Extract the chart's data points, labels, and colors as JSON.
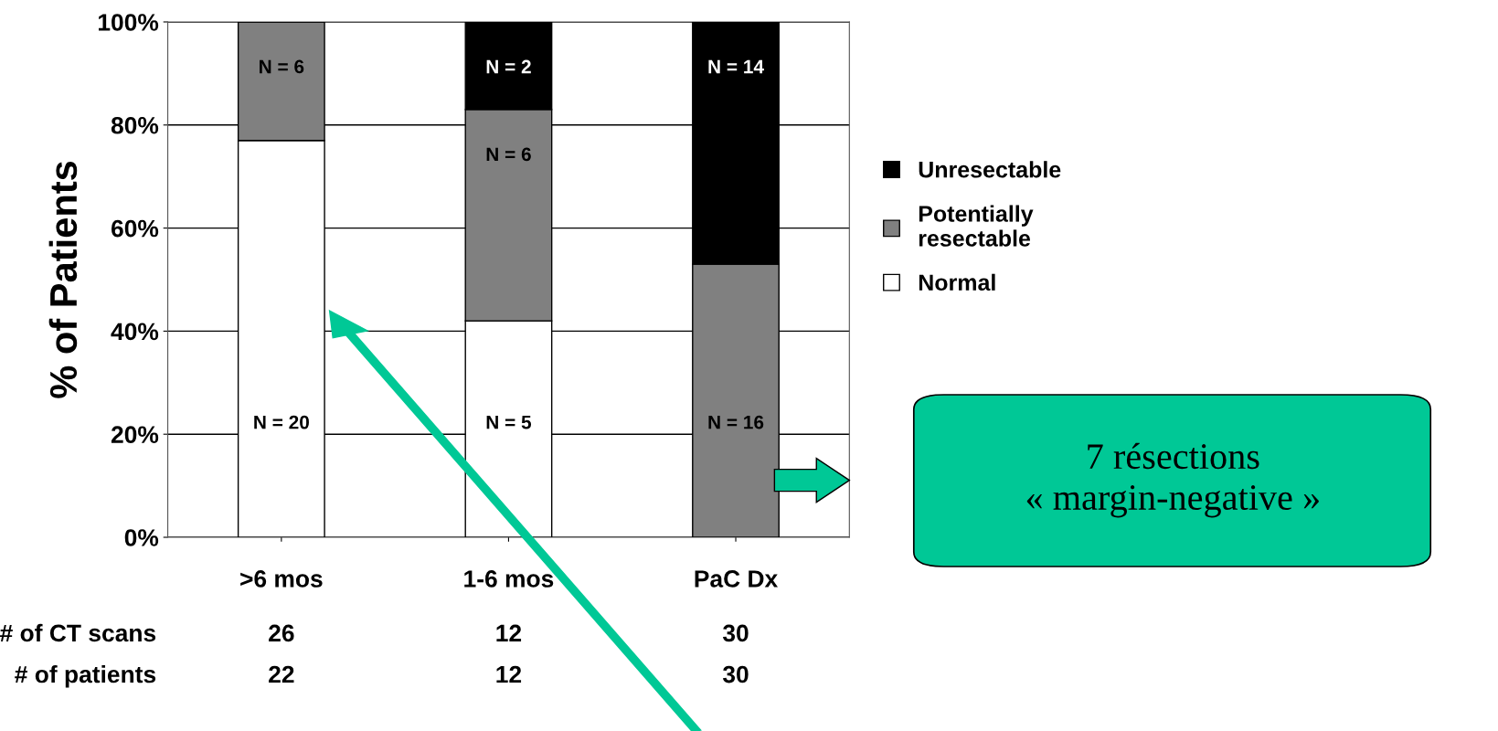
{
  "chart_data": {
    "type": "bar",
    "stacked": true,
    "ylabel": "% of Patients",
    "categories": [
      ">6 mos",
      "1-6 mos",
      "PaC Dx"
    ],
    "series": [
      {
        "name": "Normal",
        "color": "#ffffff",
        "values": [
          77,
          42,
          0
        ]
      },
      {
        "name": "Potentially\nresectable",
        "color": "#808080",
        "values": [
          23,
          41,
          53
        ]
      },
      {
        "name": "Unresectable",
        "color": "#000000",
        "values": [
          0,
          17,
          47
        ]
      }
    ],
    "ylim": [
      0,
      100
    ],
    "yticks": [
      {
        "value": 0,
        "label": "0%"
      },
      {
        "value": 20,
        "label": "20%"
      },
      {
        "value": 40,
        "label": "40%"
      },
      {
        "value": 60,
        "label": "60%"
      },
      {
        "value": 80,
        "label": "80%"
      },
      {
        "value": 100,
        "label": "100%"
      }
    ],
    "grid": "y",
    "legend": "right",
    "annotations": [
      "N = 20",
      "N = 5",
      "N = 6",
      "N = 6",
      "N = 16",
      "N = 2",
      "N = 14",
      "# of CT scans",
      "26",
      "12",
      "30",
      "# of patients",
      "22",
      "12",
      "30",
      "7 résections\n« margin-negative »"
    ]
  }
}
